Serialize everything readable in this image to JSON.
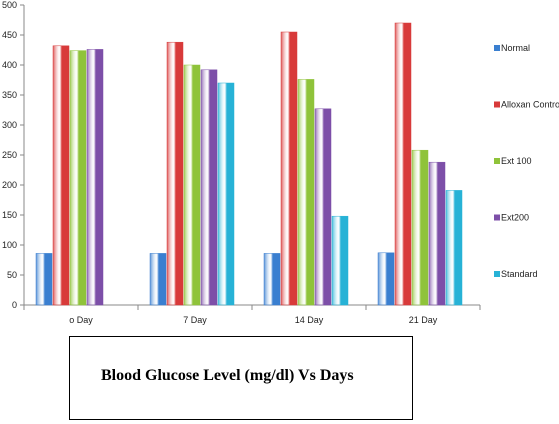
{
  "chart_data": {
    "type": "bar",
    "categories": [
      "o Day",
      "7 Day",
      "14 Day",
      "21 Day"
    ],
    "series": [
      {
        "name": "Normal",
        "color": "#3a7fd0",
        "values": [
          86,
          86,
          86,
          87
        ]
      },
      {
        "name": "Alloxan Control",
        "color": "#d83a3a",
        "values": [
          432,
          438,
          455,
          470
        ]
      },
      {
        "name": "Ext 100",
        "color": "#8fc33a",
        "values": [
          424,
          400,
          376,
          258
        ]
      },
      {
        "name": "Ext200",
        "color": "#7d4fa8",
        "values": [
          426,
          392,
          327,
          238
        ]
      },
      {
        "name": "Standard",
        "color": "#27b2d6",
        "values": [
          null,
          370,
          148,
          191
        ]
      }
    ],
    "ylim": [
      0,
      500
    ],
    "yticks": [
      "0",
      "50",
      "100",
      "150",
      "200",
      "250",
      "300",
      "350",
      "400",
      "450",
      "500"
    ],
    "grid": false,
    "legend_position": "right"
  },
  "caption": "Blood Glucose Level (mg/dl) Vs Days"
}
